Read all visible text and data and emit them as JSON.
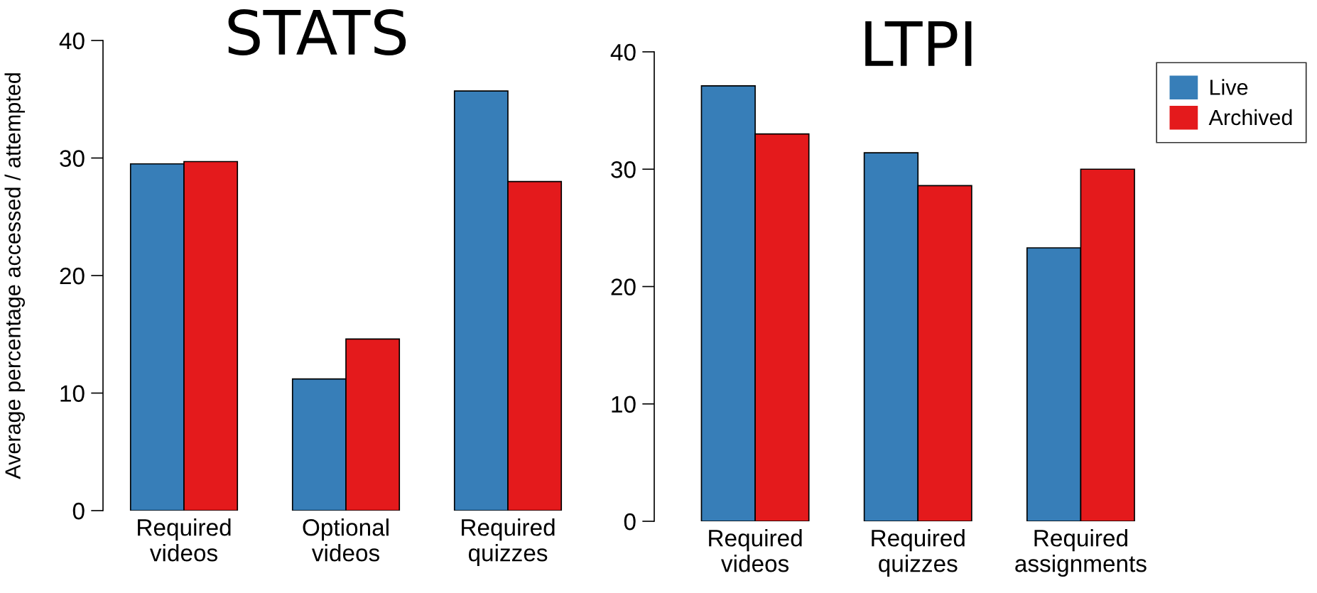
{
  "chart_data": [
    {
      "type": "bar",
      "title": "STATS",
      "ylabel": "Average percentage accessed / attempted",
      "categories": [
        "Required\nvideos",
        "Optional\nvideos",
        "Required\nquizzes"
      ],
      "ylim": [
        0,
        40
      ],
      "yticks": [
        0,
        10,
        20,
        30,
        40
      ],
      "grid": false,
      "series": [
        {
          "color": "#377eb8",
          "values": [
            29.5,
            11.2,
            35.7
          ]
        },
        {
          "color": "#e41a1c",
          "values": [
            29.7,
            14.6,
            28.0
          ]
        }
      ]
    },
    {
      "type": "bar",
      "title": "LTPI",
      "categories": [
        "Required\nvideos",
        "Required\nquizzes",
        "Required\nassignments"
      ],
      "ylim": [
        0,
        40
      ],
      "yticks": [
        0,
        10,
        20,
        30,
        40
      ],
      "grid": false,
      "legend": "right",
      "series": [
        {
          "name": "Live",
          "color": "#377eb8",
          "values": [
            37.1,
            31.4,
            23.3
          ]
        },
        {
          "name": "Archived",
          "color": "#e41a1c",
          "values": [
            33.0,
            28.6,
            30.0
          ]
        }
      ]
    }
  ]
}
